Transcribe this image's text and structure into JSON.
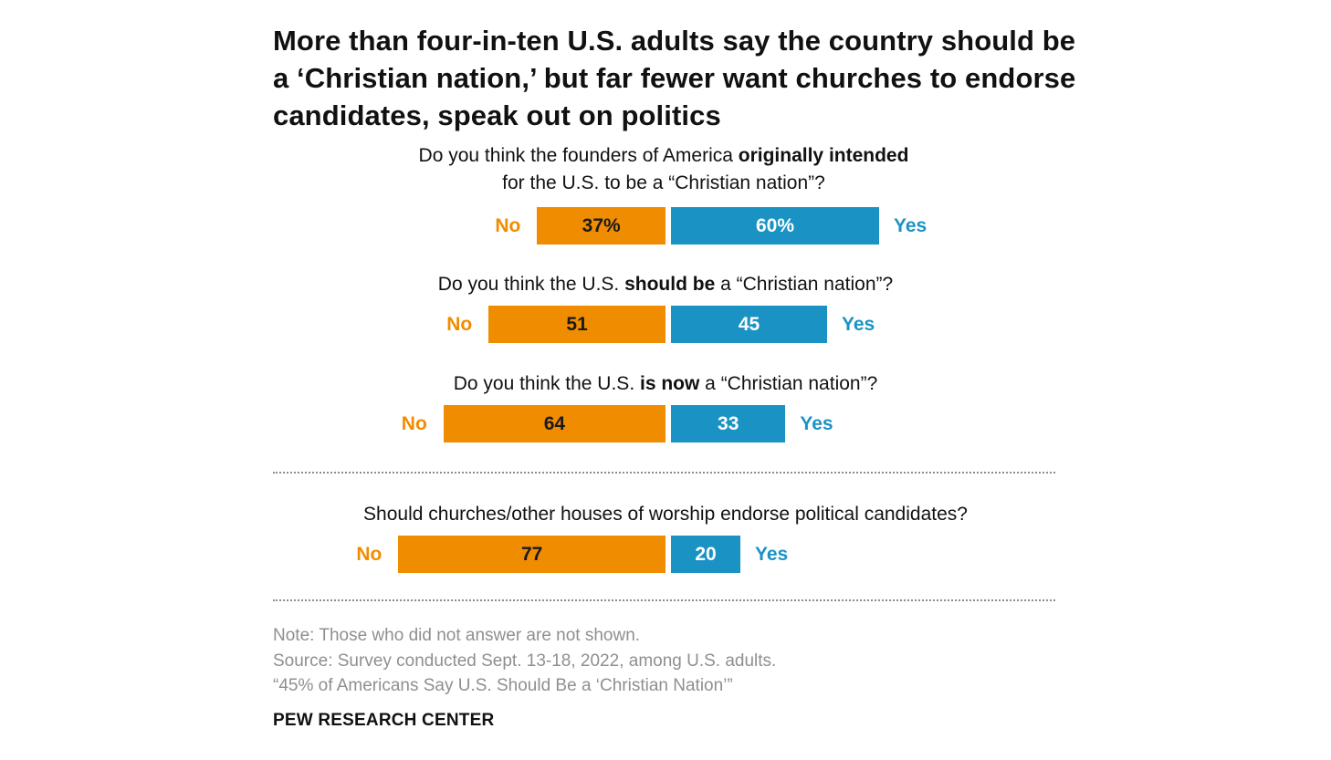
{
  "title": "More than four-in-ten U.S. adults say the country should be a ‘Christian nation,’ but far fewer want churches to endorse candidates, speak out on politics",
  "colors": {
    "no": "#f08c00",
    "yes": "#1a93c4"
  },
  "chart_data": {
    "type": "bar",
    "orientation": "diverging-horizontal",
    "series": [
      {
        "name": "No",
        "values": [
          37,
          51,
          64,
          77
        ]
      },
      {
        "name": "Yes",
        "values": [
          60,
          45,
          33,
          20
        ]
      }
    ],
    "categories": [
      "Do you think the founders of America originally intended for the U.S. to be a “Christian nation”?",
      "Do you think the U.S. should be a “Christian nation”?",
      "Do you think the U.S. is now a “Christian nation”?",
      "Should churches/other houses of worship endorse political candidates?"
    ],
    "data_labels": {
      "no": [
        "37%",
        "51",
        "64",
        "77"
      ],
      "yes": [
        "60%",
        "45",
        "33",
        "20"
      ]
    },
    "side_labels": {
      "no": "No",
      "yes": "Yes"
    },
    "questions": [
      {
        "parts": [
          {
            "text": "Do you think the founders of America ",
            "bold": false
          },
          {
            "text": "originally intended",
            "bold": true
          },
          {
            "br": true
          },
          {
            "text": "for the U.S. to be a “Christian nation”?",
            "bold": false
          }
        ]
      },
      {
        "parts": [
          {
            "text": "Do you think the U.S. ",
            "bold": false
          },
          {
            "text": "should be",
            "bold": true
          },
          {
            "text": " a “Christian nation”?",
            "bold": false
          }
        ]
      },
      {
        "parts": [
          {
            "text": "Do you think the U.S. ",
            "bold": false
          },
          {
            "text": "is now",
            "bold": true
          },
          {
            "text": " a “Christian nation”?",
            "bold": false
          }
        ]
      },
      {
        "parts": [
          {
            "text": "Should churches/other houses of worship endorse political candidates?",
            "bold": false
          }
        ]
      }
    ]
  },
  "notes": {
    "note": "Note: Those who did not answer are not shown.",
    "source": "Source: Survey conducted Sept. 13-18, 2022, among U.S. adults.",
    "report": "“45% of Americans Say U.S. Should Be a ‘Christian Nation’”"
  },
  "credit": "PEW RESEARCH CENTER"
}
